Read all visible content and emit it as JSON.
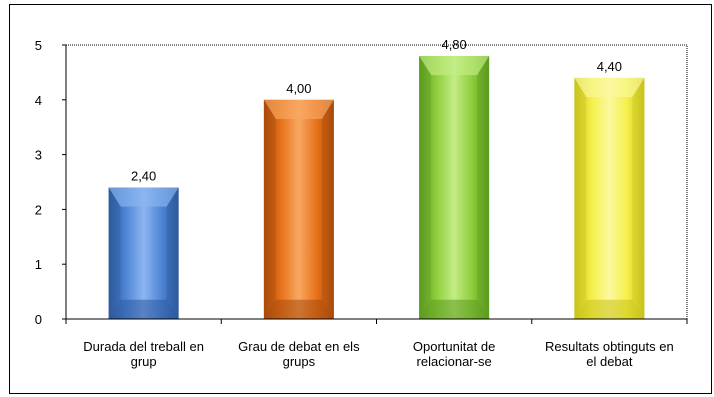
{
  "chart_data": {
    "type": "bar",
    "categories": [
      [
        "Durada del treball en",
        "grup"
      ],
      [
        "Grau de debat en els",
        "grups"
      ],
      [
        "Oportunitat de",
        "relacionar-se"
      ],
      [
        "Resultats obtinguts en",
        "el debat"
      ]
    ],
    "values": [
      2.4,
      4.0,
      4.8,
      4.4
    ],
    "data_labels": [
      "2,40",
      "4,00",
      "4,80",
      "4,40"
    ],
    "ylim": [
      0,
      5
    ],
    "yticks": [
      0,
      1,
      2,
      3,
      4,
      5
    ],
    "grid": false,
    "colors": [
      "#4f86d6",
      "#e8731a",
      "#8fcf3c",
      "#f5f04a"
    ],
    "colors_dark": [
      "#2d5a9e",
      "#a84b0c",
      "#5c9a1f",
      "#c9c21c"
    ],
    "colors_light": [
      "#8cb6f0",
      "#f7a862",
      "#c3ec86",
      "#fbf8a0"
    ]
  }
}
